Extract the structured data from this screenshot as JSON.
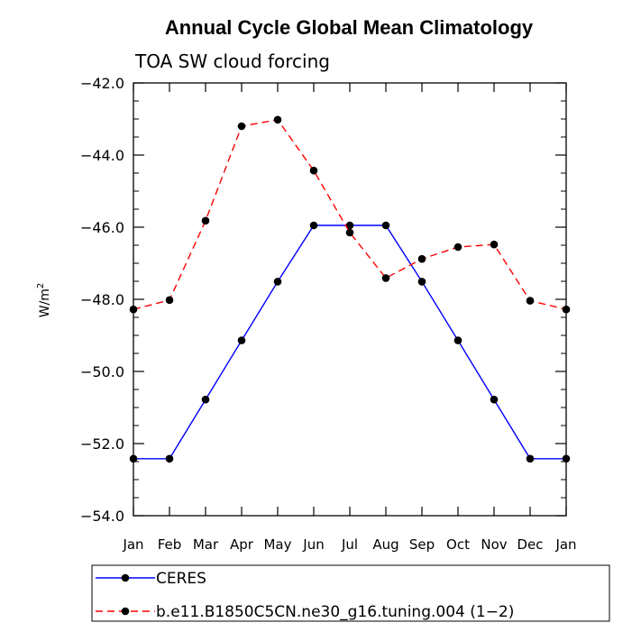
{
  "chart_data": {
    "type": "line",
    "title": "Annual Cycle Global Mean Climatology",
    "subtitle": "TOA SW cloud forcing",
    "ylabel_base": "W/m",
    "ylabel_sup": "2",
    "xlabel": "",
    "categories": [
      "Jan",
      "Feb",
      "Mar",
      "Apr",
      "May",
      "Jun",
      "Jul",
      "Aug",
      "Sep",
      "Oct",
      "Nov",
      "Dec",
      "Jan"
    ],
    "ylim": [
      -54.0,
      -42.0
    ],
    "yticks": [
      -42.0,
      -44.0,
      -46.0,
      -48.0,
      -50.0,
      -52.0,
      -54.0
    ],
    "ytick_labels": [
      "−42.0",
      "−44.0",
      "−46.0",
      "−48.0",
      "−50.0",
      "−52.0",
      "−54.0"
    ],
    "yminor_step": 0.5,
    "grid": false,
    "legend_position": "bottom",
    "series": [
      {
        "name": "CERES",
        "color": "#0000ff",
        "dash": "solid",
        "values": [
          -52.42,
          -52.42,
          -50.78,
          -49.14,
          -47.51,
          -45.95,
          -45.95,
          -45.95,
          -47.51,
          -49.14,
          -50.78,
          -52.42,
          -52.42
        ]
      },
      {
        "name": "b.e11.B1850C5CN.ne30_g16.tuning.004 (1−2)",
        "color": "#ff0000",
        "dash": "dashed",
        "values": [
          -48.28,
          -48.02,
          -45.82,
          -43.2,
          -43.02,
          -44.43,
          -46.15,
          -47.41,
          -46.88,
          -46.55,
          -46.48,
          -48.04,
          -48.28
        ]
      }
    ]
  }
}
